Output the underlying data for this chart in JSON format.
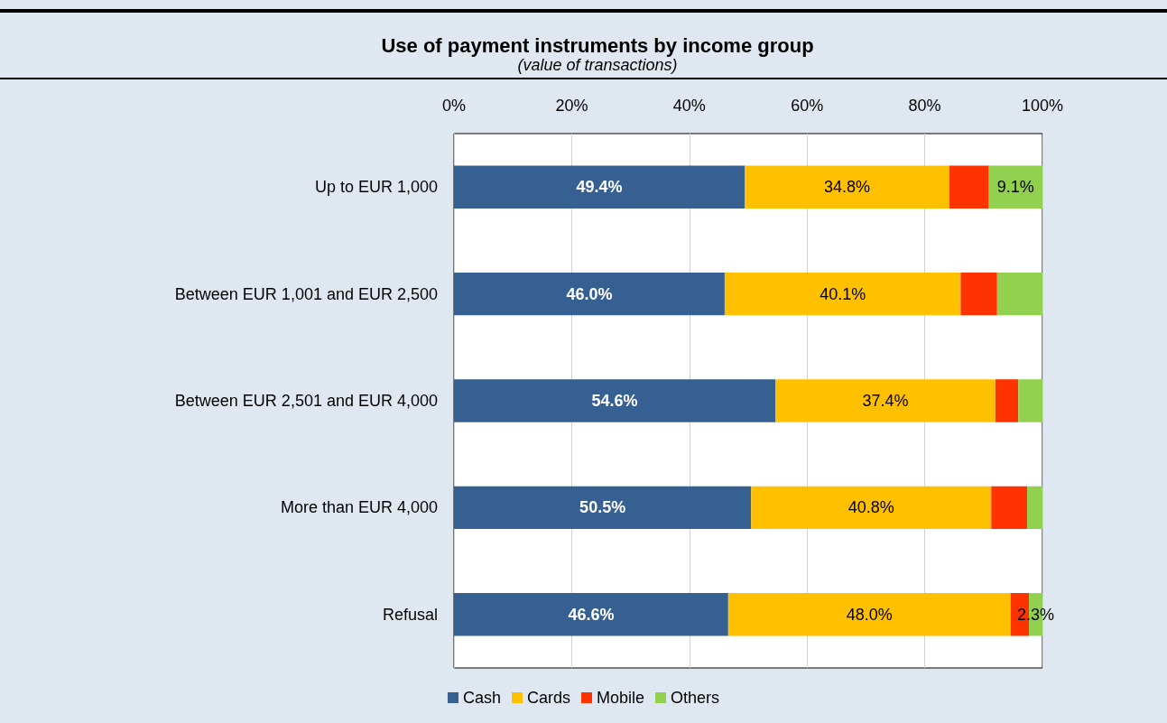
{
  "chart_data": {
    "type": "bar",
    "orientation": "horizontal",
    "stacked": true,
    "title": "Use of payment instruments by income group",
    "subtitle": "(value of transactions)",
    "categories": [
      "Up to EUR 1,000",
      "Between EUR 1,001 and EUR 2,500",
      "Between EUR 2,501 and EUR 4,000",
      "More than EUR 4,000",
      "Refusal"
    ],
    "series": [
      {
        "name": "Cash",
        "color": "#366092",
        "values": [
          49.4,
          46.0,
          54.6,
          50.5,
          46.6
        ],
        "value_labels": [
          "49.4%",
          "46.0%",
          "54.6%",
          "50.5%",
          "46.6%"
        ]
      },
      {
        "name": "Cards",
        "color": "#ffc000",
        "values": [
          34.8,
          40.1,
          37.4,
          40.8,
          48.0
        ],
        "value_labels": [
          "34.8%",
          "40.1%",
          "37.4%",
          "40.8%",
          "48.0%"
        ]
      },
      {
        "name": "Mobile",
        "color": "#ff3300",
        "values": [
          6.7,
          6.2,
          3.9,
          6.1,
          3.1
        ],
        "value_labels": [
          null,
          null,
          null,
          null,
          null
        ]
      },
      {
        "name": "Others",
        "color": "#92d050",
        "values": [
          9.1,
          7.7,
          4.1,
          2.6,
          2.3
        ],
        "value_labels": [
          "9.1%",
          null,
          null,
          null,
          "2.3%"
        ]
      }
    ],
    "xlim": [
      0,
      100
    ],
    "xticks": [
      {
        "value": 0,
        "label": "0%"
      },
      {
        "value": 20,
        "label": "20%"
      },
      {
        "value": 40,
        "label": "40%"
      },
      {
        "value": 60,
        "label": "60%"
      },
      {
        "value": 80,
        "label": "80%"
      },
      {
        "value": 100,
        "label": "100%"
      }
    ],
    "grid": "x",
    "legend": "bottom"
  }
}
